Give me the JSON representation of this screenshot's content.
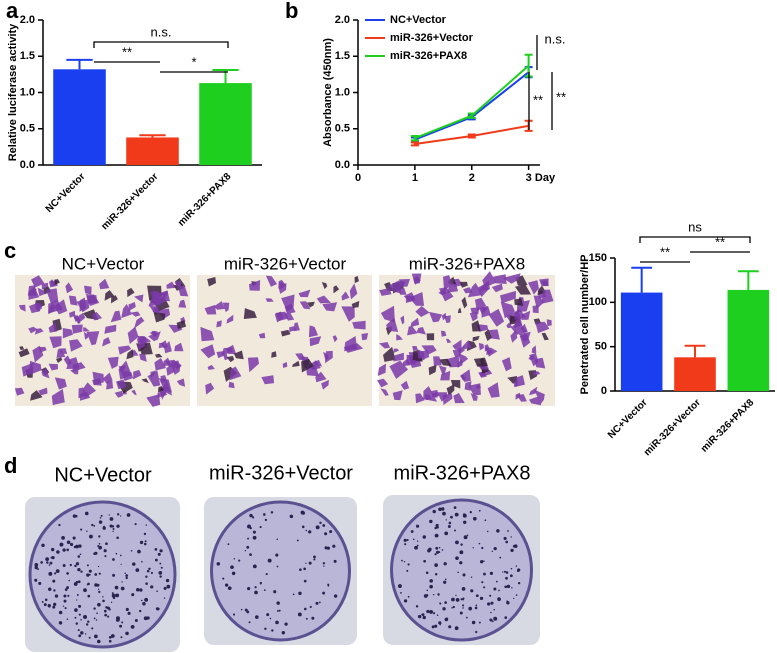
{
  "panel_labels": [
    "a",
    "b",
    "c",
    "d"
  ],
  "chart_data": [
    {
      "type": "bar",
      "y_label": "Relative luciferase activity",
      "categories": [
        "NC+Vector",
        "miR-326+Vector",
        "miR-326+PAX8"
      ],
      "values": [
        1.32,
        0.38,
        1.13
      ],
      "errors": [
        0.13,
        0.03,
        0.18
      ],
      "colors": [
        "#1a3ff0",
        "#f03a1a",
        "#1fcf1f"
      ],
      "ylim": [
        0,
        2.0
      ],
      "yticks": [
        {
          "value": 0,
          "label": "0.0"
        },
        {
          "value": 0.5,
          "label": "0.5"
        },
        {
          "value": 1.0,
          "label": "1.0"
        },
        {
          "value": 1.5,
          "label": "1.5"
        },
        {
          "value": 2.0,
          "label": "2.0"
        }
      ],
      "annotations": [
        "**",
        "*",
        "n.s."
      ]
    },
    {
      "type": "line",
      "y_label": "Absorbance (450nm)",
      "x_label": "Day",
      "x": [
        1,
        2,
        3
      ],
      "xlim": [
        0,
        3.2
      ],
      "xticks": [
        0,
        1,
        2,
        3
      ],
      "ylim": [
        0,
        2.0
      ],
      "yticks": [
        {
          "value": 0,
          "label": "0.0"
        },
        {
          "value": 0.5,
          "label": "0.5"
        },
        {
          "value": 1.0,
          "label": "1.0"
        },
        {
          "value": 1.5,
          "label": "1.5"
        },
        {
          "value": 2.0,
          "label": "2.0"
        }
      ],
      "series": [
        {
          "name": "NC+Vector",
          "color": "#1a3ff0",
          "values": [
            0.35,
            0.66,
            1.28
          ],
          "errors": [
            0.03,
            0.03,
            0.07
          ]
        },
        {
          "name": "miR-326+Vector",
          "color": "#f03a1a",
          "values": [
            0.29,
            0.4,
            0.54
          ],
          "errors": [
            0.02,
            0.02,
            0.07
          ]
        },
        {
          "name": "miR-326+PAX8",
          "color": "#1fcf1f",
          "values": [
            0.37,
            0.68,
            1.37
          ],
          "errors": [
            0.03,
            0.03,
            0.15
          ]
        }
      ],
      "annotations": [
        "n.s.",
        "**",
        "**"
      ]
    },
    {
      "type": "bar",
      "y_label": "Penetrated cell number/HP",
      "categories": [
        "NC+Vector",
        "miR-326+Vector",
        "miR-326+PAX8"
      ],
      "values": [
        111,
        38,
        114
      ],
      "errors": [
        28,
        13,
        21
      ],
      "colors": [
        "#1a3ff0",
        "#f03a1a",
        "#1fcf1f"
      ],
      "ylim": [
        0,
        150
      ],
      "yticks": [
        0,
        50,
        100,
        150
      ],
      "annotations": [
        "**",
        "**",
        "ns"
      ]
    }
  ],
  "micrographs": {
    "captions": [
      "NC+Vector",
      "miR-326+Vector",
      "miR-326+PAX8"
    ]
  },
  "colony_plates": {
    "captions": [
      "NC+Vector",
      "miR-326+Vector",
      "miR-326+PAX8"
    ]
  }
}
